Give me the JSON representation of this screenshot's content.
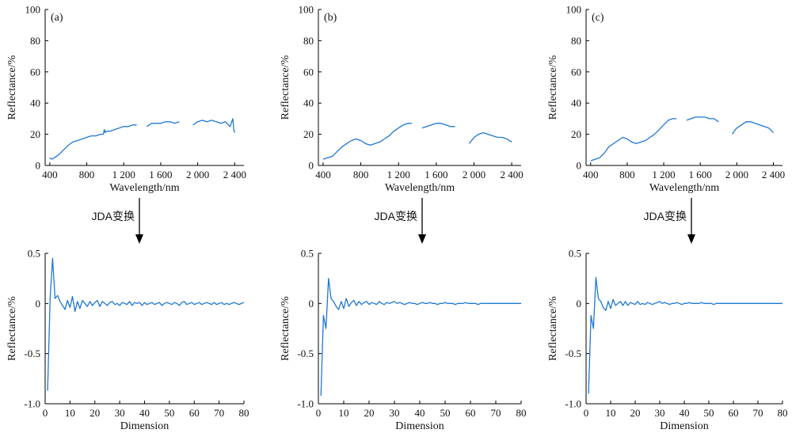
{
  "transform_label": "JDA变换",
  "colors": {
    "line": "#1f77d4",
    "axis": "#000000"
  },
  "chart_data": [
    {
      "panel": "(a)",
      "type": "line",
      "row": "spectrum",
      "xlabel": "Wavelength/nm",
      "ylabel": "Reflectance/%",
      "xlim": [
        350,
        2500
      ],
      "ylim": [
        0,
        100
      ],
      "xticks": [
        400,
        800,
        1200,
        1600,
        2000,
        2400
      ],
      "xtick_labels": [
        "400",
        "800",
        "1 200",
        "1 600",
        "2 000",
        "2 400"
      ],
      "yticks": [
        0,
        20,
        40,
        60,
        80,
        100
      ],
      "ytick_labels": [
        "0",
        "20",
        "40",
        "60",
        "80",
        "100"
      ],
      "series": [
        {
          "x": [
            400,
            420,
            450,
            500,
            550,
            600,
            650,
            700,
            750,
            800,
            850,
            900,
            950,
            980,
            990,
            1000,
            1010,
            1050,
            1100,
            1150,
            1200,
            1250,
            1300,
            1340
          ],
          "y": [
            5,
            4,
            5,
            7,
            10,
            13,
            15,
            16,
            17,
            18,
            19,
            19,
            20,
            20,
            23,
            21,
            22,
            22,
            23,
            24,
            25,
            25,
            26,
            26
          ]
        },
        {
          "x": [
            1450,
            1500,
            1550,
            1600,
            1650,
            1700,
            1750,
            1800
          ],
          "y": [
            25,
            27,
            27,
            27,
            28,
            28,
            27,
            28
          ]
        },
        {
          "x": [
            1950,
            2000,
            2050,
            2100,
            2150,
            2200,
            2250,
            2300,
            2350,
            2380,
            2390,
            2400
          ],
          "y": [
            26,
            28,
            29,
            28,
            29,
            28,
            27,
            28,
            25,
            30,
            23,
            21
          ]
        }
      ]
    },
    {
      "panel": "(b)",
      "type": "line",
      "row": "spectrum",
      "xlabel": "Wavelength/nm",
      "ylabel": "Reflectance/%",
      "xlim": [
        350,
        2500
      ],
      "ylim": [
        0,
        100
      ],
      "xticks": [
        400,
        800,
        1200,
        1600,
        2000,
        2400
      ],
      "xtick_labels": [
        "400",
        "800",
        "1 200",
        "1 600",
        "2 000",
        "2 400"
      ],
      "yticks": [
        0,
        20,
        40,
        60,
        80,
        100
      ],
      "ytick_labels": [
        "0",
        "20",
        "40",
        "60",
        "80",
        "100"
      ],
      "series": [
        {
          "x": [
            400,
            450,
            500,
            550,
            600,
            650,
            700,
            750,
            800,
            850,
            900,
            950,
            1000,
            1050,
            1100,
            1150,
            1200,
            1250,
            1300,
            1340
          ],
          "y": [
            4,
            5,
            6,
            9,
            12,
            14,
            16,
            17,
            16,
            14,
            13,
            14,
            15,
            17,
            19,
            22,
            24,
            26,
            27,
            27
          ]
        },
        {
          "x": [
            1450,
            1500,
            1550,
            1600,
            1650,
            1700,
            1750,
            1800
          ],
          "y": [
            24,
            25,
            26,
            27,
            27,
            26,
            25,
            25
          ]
        },
        {
          "x": [
            1950,
            2000,
            2050,
            2100,
            2150,
            2200,
            2250,
            2300,
            2350,
            2400
          ],
          "y": [
            14,
            18,
            20,
            21,
            20,
            19,
            18,
            18,
            17,
            15
          ]
        }
      ]
    },
    {
      "panel": "(c)",
      "type": "line",
      "row": "spectrum",
      "xlabel": "Wavelength/nm",
      "ylabel": "Reflectance/%",
      "xlim": [
        350,
        2500
      ],
      "ylim": [
        0,
        100
      ],
      "xticks": [
        400,
        800,
        1200,
        1600,
        2000,
        2400
      ],
      "xtick_labels": [
        "400",
        "800",
        "1 200",
        "1 600",
        "2 000",
        "2 400"
      ],
      "yticks": [
        0,
        20,
        40,
        60,
        80,
        100
      ],
      "ytick_labels": [
        "0",
        "20",
        "40",
        "60",
        "80",
        "100"
      ],
      "series": [
        {
          "x": [
            400,
            450,
            500,
            550,
            600,
            650,
            700,
            750,
            800,
            850,
            900,
            950,
            1000,
            1050,
            1100,
            1150,
            1200,
            1250,
            1300,
            1340
          ],
          "y": [
            3,
            4,
            5,
            8,
            12,
            14,
            16,
            18,
            17,
            15,
            14,
            15,
            16,
            18,
            20,
            23,
            26,
            29,
            30,
            30
          ]
        },
        {
          "x": [
            1450,
            1500,
            1550,
            1600,
            1650,
            1700,
            1750,
            1800
          ],
          "y": [
            29,
            30,
            31,
            31,
            31,
            30,
            30,
            28
          ]
        },
        {
          "x": [
            1950,
            1970,
            2000,
            2050,
            2100,
            2150,
            2200,
            2250,
            2300,
            2350,
            2400
          ],
          "y": [
            20,
            22,
            24,
            26,
            28,
            28,
            27,
            26,
            25,
            24,
            21
          ]
        }
      ]
    },
    {
      "panel": "",
      "type": "line",
      "row": "dimension",
      "xlabel": "Dimension",
      "ylabel": "Reflectance/%",
      "xlim": [
        0,
        80
      ],
      "ylim": [
        -1.0,
        0.5
      ],
      "xticks": [
        0,
        10,
        20,
        30,
        40,
        50,
        60,
        70,
        80
      ],
      "xtick_labels": [
        "0",
        "10",
        "20",
        "30",
        "40",
        "50",
        "60",
        "70",
        "80"
      ],
      "yticks": [
        -1.0,
        -0.5,
        0,
        0.5
      ],
      "ytick_labels": [
        "-1.0",
        "-0.5",
        "0",
        "0.5"
      ],
      "series": [
        {
          "x": [
            1,
            2,
            3,
            4,
            5,
            6,
            7,
            8,
            9,
            10,
            11,
            12,
            13,
            14,
            15,
            16,
            17,
            18,
            19,
            20,
            21,
            22,
            23,
            24,
            25,
            26,
            27,
            28,
            29,
            30,
            31,
            32,
            33,
            34,
            35,
            36,
            37,
            38,
            39,
            40,
            41,
            42,
            43,
            44,
            45,
            46,
            47,
            48,
            49,
            50,
            51,
            52,
            53,
            54,
            55,
            56,
            57,
            58,
            59,
            60,
            61,
            62,
            63,
            64,
            65,
            66,
            67,
            68,
            69,
            70,
            71,
            72,
            73,
            74,
            75,
            76,
            77,
            78,
            79,
            80
          ],
          "y": [
            -0.87,
            0.05,
            0.45,
            0.05,
            0.08,
            0.02,
            -0.02,
            -0.06,
            0.03,
            -0.04,
            0.07,
            -0.08,
            0.02,
            -0.05,
            0.03,
            0.0,
            -0.03,
            0.02,
            -0.02,
            0.01,
            0.03,
            -0.03,
            0.02,
            0.0,
            -0.02,
            0.01,
            0.02,
            -0.01,
            0.0,
            -0.02,
            0.01,
            0.0,
            -0.01,
            0.02,
            -0.02,
            0.01,
            0.0,
            0.01,
            -0.02,
            0.01,
            -0.01,
            0.0,
            0.01,
            -0.01,
            0.0,
            0.01,
            -0.02,
            0.0,
            0.01,
            0.0,
            -0.01,
            0.01,
            0.0,
            -0.02,
            0.01,
            0.02,
            -0.01,
            0.0,
            0.01,
            -0.01,
            0.0,
            0.01,
            -0.01,
            0.0,
            0.01,
            0.0,
            -0.01,
            0.01,
            -0.01,
            0.0,
            0.01,
            -0.01,
            0.0,
            -0.01,
            0.0,
            0.01,
            0.0,
            -0.01,
            0.0,
            0.01
          ]
        }
      ]
    },
    {
      "panel": "",
      "type": "line",
      "row": "dimension",
      "xlabel": "Dimension",
      "ylabel": "Reflectance/%",
      "xlim": [
        0,
        80
      ],
      "ylim": [
        -1.0,
        0.5
      ],
      "xticks": [
        0,
        10,
        20,
        30,
        40,
        50,
        60,
        70,
        80
      ],
      "xtick_labels": [
        "0",
        "10",
        "20",
        "30",
        "40",
        "50",
        "60",
        "70",
        "80"
      ],
      "yticks": [
        -1.0,
        -0.5,
        0,
        0.5
      ],
      "ytick_labels": [
        "-1.0",
        "-0.5",
        "0",
        "0.5"
      ],
      "series": [
        {
          "x": [
            1,
            2,
            3,
            4,
            5,
            6,
            7,
            8,
            9,
            10,
            11,
            12,
            13,
            14,
            15,
            16,
            17,
            18,
            19,
            20,
            21,
            22,
            23,
            24,
            25,
            26,
            27,
            28,
            29,
            30,
            31,
            32,
            33,
            34,
            35,
            36,
            37,
            38,
            39,
            40,
            41,
            42,
            43,
            44,
            45,
            46,
            47,
            48,
            49,
            50,
            51,
            52,
            53,
            54,
            55,
            56,
            57,
            58,
            59,
            60,
            61,
            62,
            63,
            64,
            65,
            66,
            67,
            68,
            69,
            70,
            71,
            72,
            73,
            74,
            75,
            76,
            77,
            78,
            79,
            80
          ],
          "y": [
            -0.92,
            -0.12,
            -0.25,
            0.25,
            0.05,
            0.02,
            -0.03,
            -0.06,
            0.02,
            -0.05,
            0.05,
            -0.03,
            0.01,
            0.03,
            -0.02,
            0.02,
            -0.01,
            0.01,
            0.02,
            -0.01,
            0.01,
            0.0,
            -0.01,
            0.02,
            0.0,
            -0.01,
            0.01,
            0.0,
            0.01,
            0.02,
            0.0,
            0.01,
            0.0,
            -0.01,
            0.0,
            0.01,
            0.0,
            0.0,
            -0.01,
            0.0,
            0.01,
            0.0,
            0.0,
            0.01,
            0.0,
            0.0,
            -0.01,
            0.0,
            0.0,
            0.01,
            0.0,
            0.0,
            0.0,
            -0.01,
            0.0,
            0.0,
            0.0,
            0.01,
            0.0,
            0.0,
            0.0,
            0.0,
            -0.01,
            0.0,
            0.0,
            0.0,
            0.0,
            0.0,
            0.0,
            0.0,
            0.0,
            0.0,
            0.0,
            0.0,
            0.0,
            0.0,
            0.0,
            0.0,
            0.0,
            0.0
          ]
        }
      ]
    },
    {
      "panel": "",
      "type": "line",
      "row": "dimension",
      "xlabel": "Dimension",
      "ylabel": "Reflectance/%",
      "xlim": [
        0,
        80
      ],
      "ylim": [
        -1.0,
        0.5
      ],
      "xticks": [
        0,
        10,
        20,
        30,
        40,
        50,
        60,
        70,
        80
      ],
      "xtick_labels": [
        "0",
        "10",
        "20",
        "30",
        "40",
        "50",
        "60",
        "70",
        "80"
      ],
      "yticks": [
        -1.0,
        -0.5,
        0,
        0.5
      ],
      "ytick_labels": [
        "-1.0",
        "-0.5",
        "0",
        "0.5"
      ],
      "series": [
        {
          "x": [
            1,
            2,
            3,
            4,
            5,
            6,
            7,
            8,
            9,
            10,
            11,
            12,
            13,
            14,
            15,
            16,
            17,
            18,
            19,
            20,
            21,
            22,
            23,
            24,
            25,
            26,
            27,
            28,
            29,
            30,
            31,
            32,
            33,
            34,
            35,
            36,
            37,
            38,
            39,
            40,
            41,
            42,
            43,
            44,
            45,
            46,
            47,
            48,
            49,
            50,
            51,
            52,
            53,
            54,
            55,
            56,
            57,
            58,
            59,
            60,
            61,
            62,
            63,
            64,
            65,
            66,
            67,
            68,
            69,
            70,
            71,
            72,
            73,
            74,
            75,
            76,
            77,
            78,
            79,
            80
          ],
          "y": [
            -0.9,
            -0.12,
            -0.25,
            0.26,
            0.05,
            0.02,
            -0.04,
            -0.07,
            0.02,
            -0.05,
            0.04,
            -0.02,
            0.0,
            0.02,
            -0.02,
            0.02,
            -0.02,
            0.01,
            0.0,
            -0.01,
            0.02,
            -0.01,
            0.0,
            -0.01,
            0.01,
            0.0,
            -0.01,
            0.0,
            0.01,
            0.02,
            0.0,
            0.01,
            0.0,
            -0.01,
            0.0,
            0.0,
            0.01,
            0.0,
            -0.01,
            0.0,
            0.0,
            0.01,
            0.0,
            0.0,
            0.0,
            0.0,
            0.01,
            0.0,
            0.0,
            0.0,
            0.0,
            -0.01,
            0.0,
            0.0,
            0.0,
            0.0,
            0.0,
            0.0,
            0.0,
            0.0,
            0.0,
            0.0,
            0.0,
            0.0,
            0.0,
            0.0,
            0.0,
            0.0,
            0.0,
            0.0,
            0.0,
            0.0,
            0.0,
            0.0,
            0.0,
            0.0,
            0.0,
            0.0,
            0.0,
            0.0
          ]
        }
      ]
    }
  ]
}
